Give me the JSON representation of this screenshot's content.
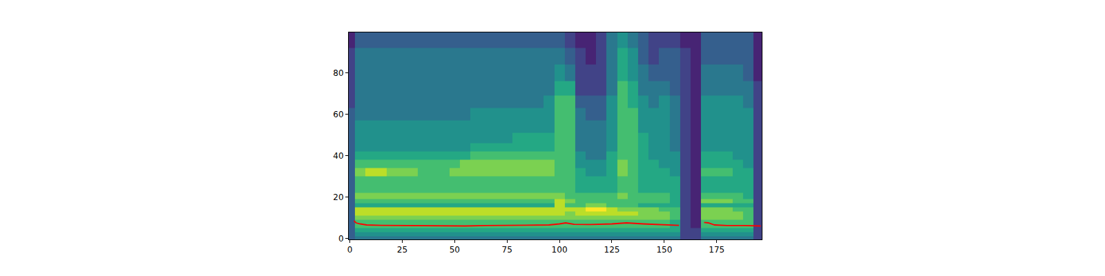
{
  "chart_data": {
    "type": "heatmap",
    "color": "viridis",
    "xlim": [
      -0.5,
      196.5
    ],
    "ylim": [
      -0.5,
      99.5
    ],
    "xticks": [
      0,
      25,
      50,
      75,
      100,
      125,
      150,
      175
    ],
    "yticks": [
      0,
      20,
      40,
      60,
      80
    ],
    "grid": false,
    "zlim": [
      0,
      10
    ],
    "x": [
      0,
      5,
      10,
      15,
      20,
      25,
      30,
      35,
      40,
      45,
      50,
      55,
      60,
      65,
      70,
      75,
      80,
      85,
      90,
      95,
      100,
      105,
      110,
      115,
      120,
      125,
      130,
      135,
      140,
      145,
      150,
      155,
      160,
      165,
      170,
      175,
      180,
      185,
      190,
      195
    ],
    "y": [
      0,
      2,
      4,
      6,
      8,
      10,
      12,
      14,
      16,
      18,
      20,
      24,
      28,
      32,
      36,
      40,
      44,
      48,
      54,
      60,
      66,
      72,
      80,
      88,
      96
    ],
    "z": [
      [
        3,
        4,
        4,
        4,
        4,
        4,
        4,
        4,
        4,
        4,
        4,
        4,
        4,
        4,
        4,
        4,
        4,
        4,
        4,
        4,
        4,
        4,
        4,
        4,
        4,
        4,
        4,
        4,
        4,
        4,
        4,
        4,
        2,
        2,
        4,
        4,
        4,
        4,
        4,
        2
      ],
      [
        3,
        5,
        5,
        5,
        5,
        5,
        5,
        5,
        5,
        5,
        5,
        5,
        5,
        5,
        5,
        5,
        5,
        5,
        5,
        5,
        5,
        5,
        5,
        5,
        5,
        5,
        5,
        5,
        5,
        5,
        5,
        5,
        2,
        2,
        5,
        5,
        5,
        5,
        5,
        2
      ],
      [
        3,
        6,
        6,
        6,
        6,
        6,
        6,
        6,
        6,
        6,
        6,
        6,
        6,
        6,
        6,
        6,
        6,
        6,
        6,
        6,
        6,
        6,
        6,
        6,
        6,
        6,
        6,
        6,
        6,
        6,
        6,
        6,
        2,
        2,
        6,
        6,
        6,
        6,
        6,
        2
      ],
      [
        3,
        7,
        7,
        7,
        7,
        7,
        7,
        7,
        7,
        7,
        7,
        7,
        7,
        7,
        7,
        7,
        7,
        7,
        7,
        7,
        7,
        7,
        7,
        7,
        7,
        7,
        7,
        7,
        7,
        7,
        7,
        6,
        2,
        1,
        7,
        7,
        7,
        7,
        7,
        2
      ],
      [
        3,
        7,
        7,
        7,
        7,
        7,
        7,
        7,
        7,
        7,
        7,
        7,
        7,
        7,
        7,
        7,
        7,
        7,
        7,
        7,
        7,
        7,
        7,
        7,
        7,
        7,
        7,
        7,
        7,
        7,
        7,
        6,
        2,
        1,
        7,
        7,
        7,
        7,
        7,
        2
      ],
      [
        3,
        8,
        8,
        8,
        8,
        8,
        8,
        8,
        8,
        8,
        8,
        8,
        8,
        8,
        8,
        8,
        8,
        8,
        8,
        8,
        8,
        8,
        8,
        8,
        8,
        8,
        8,
        8,
        8,
        8,
        8,
        7,
        2,
        1,
        8,
        8,
        8,
        8,
        7,
        2
      ],
      [
        3,
        9,
        9,
        9,
        9,
        9,
        9,
        9,
        9,
        9,
        9,
        9,
        9,
        9,
        9,
        9,
        9,
        9,
        9,
        9,
        9,
        8,
        9,
        9,
        9,
        9,
        9,
        9,
        8,
        8,
        8,
        7,
        2,
        1,
        8,
        8,
        8,
        8,
        7,
        2
      ],
      [
        3,
        9,
        9,
        9,
        9,
        9,
        9,
        9,
        9,
        9,
        9,
        9,
        9,
        9,
        9,
        9,
        9,
        9,
        9,
        9,
        9,
        9,
        9,
        10,
        10,
        9,
        8,
        8,
        8,
        8,
        7,
        7,
        2,
        1,
        8,
        8,
        8,
        7,
        7,
        2
      ],
      [
        3,
        6,
        6,
        6,
        6,
        6,
        6,
        6,
        6,
        6,
        6,
        6,
        6,
        6,
        6,
        6,
        6,
        6,
        6,
        6,
        9,
        7,
        7,
        8,
        8,
        7,
        7,
        7,
        6,
        6,
        6,
        6,
        2,
        1,
        6,
        6,
        6,
        6,
        6,
        2
      ],
      [
        3,
        7,
        7,
        7,
        7,
        7,
        7,
        7,
        7,
        7,
        7,
        7,
        7,
        7,
        7,
        7,
        7,
        7,
        7,
        7,
        9,
        8,
        7,
        7,
        7,
        7,
        7,
        7,
        7,
        7,
        7,
        6,
        2,
        1,
        8,
        8,
        8,
        7,
        7,
        2
      ],
      [
        3,
        8,
        8,
        8,
        8,
        8,
        8,
        8,
        8,
        8,
        8,
        8,
        8,
        8,
        8,
        8,
        8,
        8,
        8,
        8,
        8,
        7,
        7,
        7,
        7,
        7,
        8,
        7,
        7,
        7,
        7,
        6,
        2,
        1,
        7,
        7,
        7,
        7,
        6,
        2
      ],
      [
        3,
        7,
        7,
        7,
        7,
        7,
        7,
        7,
        7,
        7,
        7,
        7,
        7,
        7,
        7,
        7,
        7,
        7,
        7,
        7,
        7,
        7,
        6,
        6,
        6,
        6,
        7,
        7,
        6,
        6,
        6,
        6,
        2,
        1,
        6,
        6,
        6,
        6,
        6,
        2
      ],
      [
        3,
        7,
        7,
        7,
        7,
        7,
        7,
        7,
        7,
        7,
        7,
        7,
        7,
        7,
        7,
        7,
        7,
        7,
        7,
        7,
        7,
        7,
        6,
        6,
        6,
        6,
        7,
        7,
        6,
        6,
        6,
        6,
        2,
        1,
        6,
        6,
        6,
        6,
        6,
        2
      ],
      [
        3,
        8,
        9,
        9,
        8,
        8,
        8,
        7,
        7,
        7,
        8,
        8,
        8,
        8,
        8,
        8,
        8,
        8,
        8,
        8,
        7,
        7,
        6,
        5,
        5,
        6,
        8,
        7,
        6,
        6,
        6,
        5,
        2,
        1,
        7,
        7,
        7,
        6,
        6,
        2
      ],
      [
        3,
        7,
        7,
        7,
        7,
        7,
        7,
        7,
        7,
        7,
        7,
        8,
        8,
        8,
        8,
        8,
        8,
        8,
        8,
        8,
        7,
        7,
        5,
        5,
        5,
        6,
        8,
        7,
        6,
        6,
        5,
        5,
        2,
        1,
        6,
        6,
        6,
        6,
        5,
        2
      ],
      [
        3,
        6,
        6,
        6,
        6,
        6,
        6,
        6,
        6,
        6,
        6,
        6,
        7,
        7,
        7,
        7,
        7,
        7,
        7,
        7,
        7,
        7,
        5,
        4,
        4,
        6,
        7,
        7,
        6,
        5,
        5,
        5,
        2,
        1,
        6,
        6,
        6,
        5,
        5,
        2
      ],
      [
        3,
        5,
        5,
        5,
        5,
        5,
        5,
        5,
        5,
        5,
        5,
        5,
        6,
        6,
        6,
        6,
        6,
        6,
        6,
        6,
        7,
        7,
        4,
        4,
        4,
        5,
        7,
        7,
        6,
        5,
        5,
        4,
        2,
        1,
        5,
        5,
        5,
        5,
        5,
        2
      ],
      [
        3,
        5,
        5,
        5,
        5,
        5,
        5,
        5,
        5,
        5,
        5,
        5,
        5,
        5,
        5,
        5,
        6,
        6,
        6,
        6,
        7,
        7,
        4,
        4,
        4,
        5,
        7,
        7,
        6,
        5,
        5,
        4,
        2,
        1,
        5,
        5,
        5,
        5,
        5,
        2
      ],
      [
        3,
        5,
        5,
        5,
        5,
        5,
        5,
        5,
        5,
        5,
        5,
        5,
        5,
        5,
        5,
        5,
        5,
        5,
        5,
        5,
        7,
        7,
        4,
        4,
        4,
        5,
        7,
        7,
        5,
        5,
        5,
        4,
        2,
        1,
        5,
        5,
        5,
        5,
        5,
        2
      ],
      [
        3,
        4,
        4,
        4,
        4,
        4,
        4,
        4,
        4,
        4,
        4,
        4,
        5,
        5,
        5,
        5,
        5,
        5,
        5,
        5,
        7,
        7,
        4,
        3,
        3,
        5,
        7,
        7,
        5,
        5,
        5,
        4,
        2,
        1,
        5,
        5,
        5,
        5,
        5,
        2
      ],
      [
        2,
        4,
        4,
        4,
        4,
        4,
        4,
        4,
        4,
        4,
        4,
        4,
        4,
        4,
        4,
        4,
        4,
        4,
        4,
        5,
        7,
        7,
        3,
        3,
        3,
        5,
        7,
        6,
        5,
        4,
        5,
        4,
        2,
        1,
        5,
        5,
        5,
        5,
        4,
        2
      ],
      [
        2,
        4,
        4,
        4,
        4,
        4,
        4,
        4,
        4,
        4,
        4,
        4,
        4,
        4,
        4,
        4,
        4,
        4,
        4,
        4,
        6,
        6,
        2,
        2,
        2,
        4,
        7,
        6,
        4,
        4,
        4,
        3,
        2,
        1,
        4,
        4,
        4,
        4,
        4,
        2
      ],
      [
        2,
        4,
        4,
        4,
        4,
        4,
        4,
        4,
        4,
        4,
        4,
        4,
        4,
        4,
        4,
        4,
        4,
        4,
        4,
        4,
        5,
        4,
        2,
        2,
        2,
        4,
        6,
        5,
        4,
        3,
        3,
        3,
        2,
        1,
        4,
        4,
        4,
        4,
        3,
        1
      ],
      [
        2,
        4,
        4,
        4,
        4,
        4,
        4,
        4,
        4,
        4,
        4,
        4,
        4,
        4,
        4,
        4,
        4,
        4,
        4,
        4,
        4,
        3,
        2,
        1,
        2,
        4,
        6,
        5,
        3,
        2,
        3,
        3,
        2,
        1,
        3,
        3,
        3,
        3,
        3,
        1
      ],
      [
        1,
        3,
        3,
        3,
        3,
        3,
        3,
        3,
        3,
        3,
        3,
        3,
        3,
        3,
        3,
        3,
        3,
        3,
        3,
        3,
        3,
        2,
        1,
        1,
        2,
        4,
        5,
        4,
        3,
        2,
        2,
        2,
        1,
        1,
        3,
        3,
        3,
        3,
        3,
        1
      ]
    ],
    "series": [
      {
        "type": "line",
        "color": "red",
        "x": [
          2,
          3,
          5,
          8,
          15,
          25,
          35,
          45,
          50,
          55,
          65,
          75,
          85,
          95,
          100,
          103,
          107,
          115,
          125,
          132,
          140,
          150,
          157,
          163,
          169,
          171,
          174,
          180,
          188,
          196
        ],
        "values": [
          8.5,
          7.5,
          7,
          6.5,
          6.3,
          6.2,
          6.2,
          6.2,
          6.1,
          6,
          6.2,
          6.3,
          6.4,
          6.5,
          7,
          7.5,
          6.8,
          6.7,
          7,
          7.5,
          7,
          6.5,
          6.3,
          null,
          7.7,
          7.5,
          6.5,
          6.2,
          6.2,
          6
        ]
      }
    ]
  }
}
